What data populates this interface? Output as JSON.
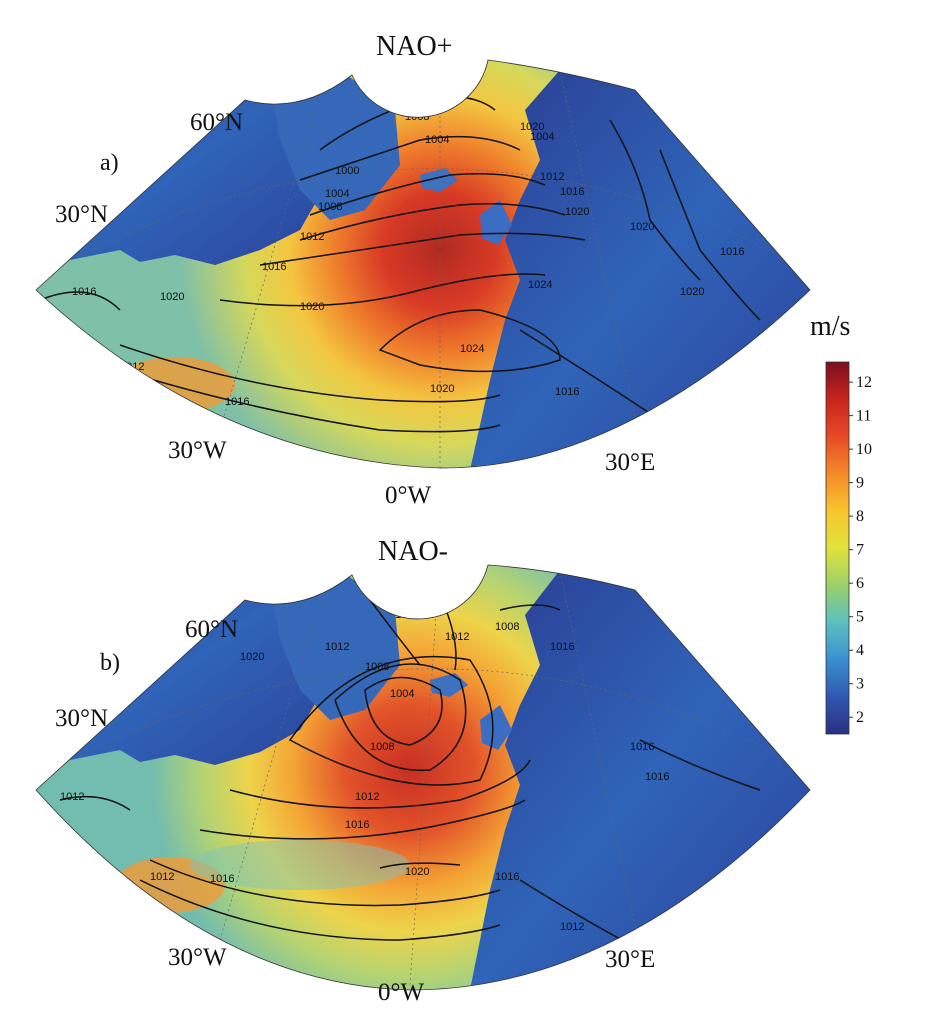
{
  "panels": [
    {
      "id": "a",
      "title": "NAO+",
      "panel_label": "a)",
      "lat_labels": [
        "60°N",
        "30°N"
      ],
      "lon_labels": [
        "30°W",
        "0°W",
        "30°E"
      ],
      "contour_labels": [
        "1000",
        "1004",
        "1004",
        "1004",
        "1008",
        "1008",
        "1012",
        "1012",
        "1012",
        "1016",
        "1016",
        "1016",
        "1016",
        "1016",
        "1016",
        "1020",
        "1020",
        "1020",
        "1020",
        "1020",
        "1020",
        "1020",
        "1024",
        "1024"
      ]
    },
    {
      "id": "b",
      "title": "NAO-",
      "panel_label": "b)",
      "lat_labels": [
        "60°N",
        "30°N"
      ],
      "lon_labels": [
        "30°W",
        "0°W",
        "30°E"
      ],
      "contour_labels": [
        "1004",
        "1008",
        "1008",
        "1008",
        "1012",
        "1012",
        "1012",
        "1012",
        "1012",
        "1012",
        "1016",
        "1016",
        "1016",
        "1016",
        "1016",
        "1016",
        "1016",
        "1020",
        "1020"
      ]
    }
  ],
  "colorbar": {
    "unit": "m/s",
    "ticks": [
      "12",
      "11",
      "10",
      "9",
      "8",
      "7",
      "6",
      "5",
      "4",
      "3",
      "2"
    ],
    "min": 1.5,
    "max": 12.6,
    "colors": [
      "#7a1020",
      "#c8241c",
      "#e84a28",
      "#f58a2a",
      "#f8c52e",
      "#e2e23a",
      "#9bd06a",
      "#5cc0c0",
      "#3a8fd0",
      "#3058b0",
      "#2a2f80"
    ]
  }
}
